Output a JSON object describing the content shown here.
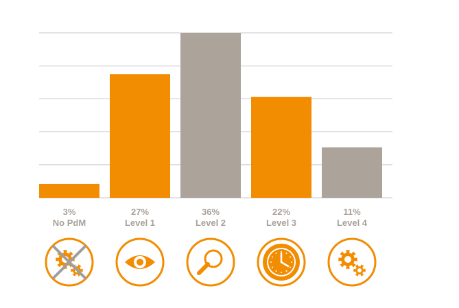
{
  "chart_data": {
    "type": "bar",
    "categories": [
      "No PdM",
      "Level 1",
      "Level 2",
      "Level 3",
      "Level 4"
    ],
    "values": [
      3,
      27,
      36,
      22,
      11
    ],
    "value_labels": [
      "3%",
      "27%",
      "36%",
      "22%",
      "11%"
    ],
    "ylim": [
      0,
      36
    ],
    "grid": true,
    "bar_colors": [
      "#f28c00",
      "#f28c00",
      "#aca49b",
      "#f28c00",
      "#aca49b"
    ],
    "icons": [
      "crossed-gears-icon",
      "eye-icon",
      "magnifier-icon",
      "clock-icon",
      "gears-icon"
    ]
  },
  "colors": {
    "accent": "#f28c00",
    "neutral": "#aca49b",
    "grid": "#c8c8c8",
    "label": "#a8a19a",
    "cross": "#9e9e9e"
  }
}
